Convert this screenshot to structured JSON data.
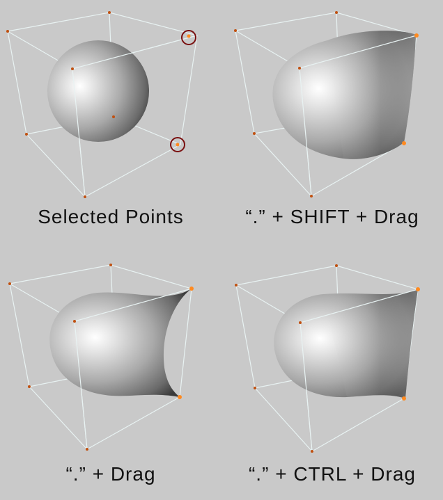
{
  "panels": [
    {
      "id": "selected-points",
      "caption": "Selected Points"
    },
    {
      "id": "shift-drag",
      "caption": "“.” + SHIFT + Drag"
    },
    {
      "id": "drag",
      "caption": "“.” + Drag"
    },
    {
      "id": "ctrl-drag",
      "caption": "“.” + CTRL + Drag"
    }
  ],
  "colors": {
    "background": "#c9c9c9",
    "cage": "#e8f2f2",
    "vertex": "#c05010",
    "selected_vertex": "#ff8a20",
    "selection_ring": "#7a1010"
  }
}
